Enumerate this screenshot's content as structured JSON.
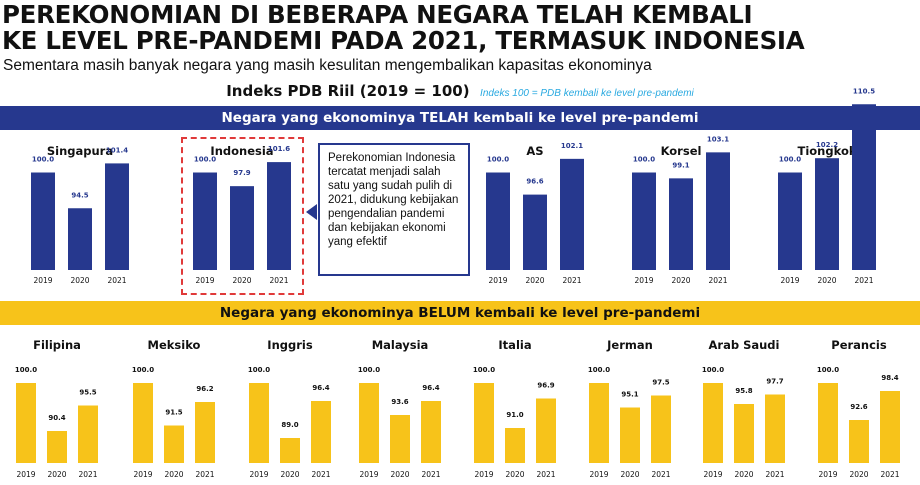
{
  "header": {
    "title_line1": "PEREKONOMIAN DI BEBERAPA NEGARA TELAH KEMBALI",
    "title_line2": "KE LEVEL PRE-PANDEMI PADA 2021, TERMASUK INDONESIA",
    "subtitle": "Sementara masih banyak negara yang masih kesulitan mengembalikan kapasitas ekonominya",
    "index_title": "Indeks PDB Riil (2019 = 100)",
    "index_note": "Indeks 100 = PDB kembali ke level pre-pandemi"
  },
  "bands": {
    "recovered": "Negara yang ekonominya TELAH kembali ke level pre-pandemi",
    "not_recovered": "Negara yang ekonominya BELUM kembali ke level pre-pandemi"
  },
  "callout": {
    "text": "Perekonomian Indonesia tercatat menjadi salah satu yang sudah pulih di 2021, didukung kebijakan pengendalian pandemi dan kebijakan ekonomi yang efektif"
  },
  "colors": {
    "recovered_bar": "#26388e",
    "not_recovered_bar": "#f7c31a",
    "highlight_border": "#e03a3a",
    "note_text": "#29a9e0"
  },
  "chart_data": [
    {
      "type": "bar",
      "group": "recovered",
      "title": "Singapura",
      "categories": [
        "2019",
        "2020",
        "2021"
      ],
      "values": [
        100.0,
        94.5,
        101.4
      ],
      "labels": [
        "100.0",
        "94.5",
        "101.4"
      ]
    },
    {
      "type": "bar",
      "group": "recovered",
      "title": "Indonesia",
      "categories": [
        "2019",
        "2020",
        "2021"
      ],
      "values": [
        100.0,
        97.9,
        101.6
      ],
      "labels": [
        "100.0",
        "97.9",
        "101.6"
      ]
    },
    {
      "type": "bar",
      "group": "recovered",
      "title": "AS",
      "categories": [
        "2019",
        "2020",
        "2021"
      ],
      "values": [
        100.0,
        96.6,
        102.1
      ],
      "labels": [
        "100.0",
        "96.6",
        "102.1"
      ]
    },
    {
      "type": "bar",
      "group": "recovered",
      "title": "Korsel",
      "categories": [
        "2019",
        "2020",
        "2021"
      ],
      "values": [
        100.0,
        99.1,
        103.1
      ],
      "labels": [
        "100.0",
        "99.1",
        "103.1"
      ]
    },
    {
      "type": "bar",
      "group": "recovered",
      "title": "Tiongkok",
      "categories": [
        "2019",
        "2020",
        "2021"
      ],
      "values": [
        100.0,
        102.2,
        110.5
      ],
      "labels": [
        "100.0",
        "102.2",
        "110.5"
      ]
    },
    {
      "type": "bar",
      "group": "not_recovered",
      "title": "Filipina",
      "categories": [
        "2019",
        "2020",
        "2021"
      ],
      "values": [
        100.0,
        90.4,
        95.5
      ],
      "labels": [
        "100.0",
        "90.4",
        "95.5"
      ]
    },
    {
      "type": "bar",
      "group": "not_recovered",
      "title": "Meksiko",
      "categories": [
        "2019",
        "2020",
        "2021"
      ],
      "values": [
        100.0,
        91.5,
        96.2
      ],
      "labels": [
        "100.0",
        "91.5",
        "96.2"
      ]
    },
    {
      "type": "bar",
      "group": "not_recovered",
      "title": "Inggris",
      "categories": [
        "2019",
        "2020",
        "2021"
      ],
      "values": [
        100.0,
        89.0,
        96.4
      ],
      "labels": [
        "100.0",
        "89.0",
        "96.4"
      ]
    },
    {
      "type": "bar",
      "group": "not_recovered",
      "title": "Malaysia",
      "categories": [
        "2019",
        "2020",
        "2021"
      ],
      "values": [
        100.0,
        93.6,
        96.4
      ],
      "labels": [
        "100.0",
        "93.6",
        "96.4"
      ]
    },
    {
      "type": "bar",
      "group": "not_recovered",
      "title": "Italia",
      "categories": [
        "2019",
        "2020",
        "2021"
      ],
      "values": [
        100.0,
        91.0,
        96.9
      ],
      "labels": [
        "100.0",
        "91.0",
        "96.9"
      ]
    },
    {
      "type": "bar",
      "group": "not_recovered",
      "title": "Jerman",
      "categories": [
        "2019",
        "2020",
        "2021"
      ],
      "values": [
        100.0,
        95.1,
        97.5
      ],
      "labels": [
        "100.0",
        "95.1",
        "97.5"
      ]
    },
    {
      "type": "bar",
      "group": "not_recovered",
      "title": "Arab Saudi",
      "categories": [
        "2019",
        "2020",
        "2021"
      ],
      "values": [
        100.0,
        95.8,
        97.7
      ],
      "labels": [
        "100.0",
        "95.8",
        "97.7"
      ]
    },
    {
      "type": "bar",
      "group": "not_recovered",
      "title": "Perancis",
      "categories": [
        "2019",
        "2020",
        "2021"
      ],
      "values": [
        100.0,
        92.6,
        98.4
      ],
      "labels": [
        "100.0",
        "92.6",
        "98.4"
      ]
    }
  ]
}
